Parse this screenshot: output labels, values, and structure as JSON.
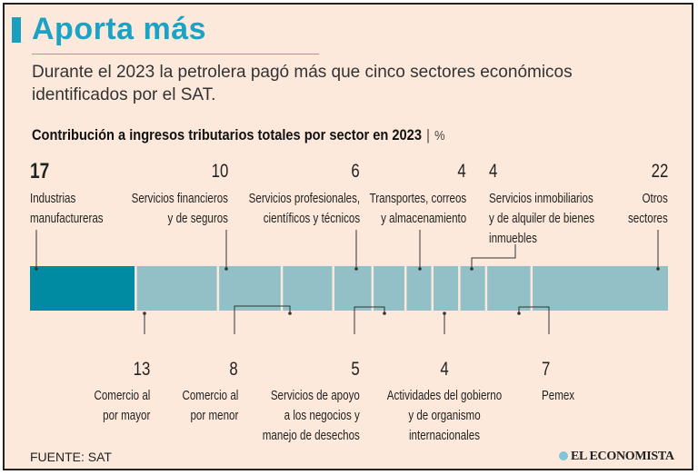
{
  "header": {
    "title": "Aporta más",
    "subtitle": "Durante el 2023 la petrolera pagó más que cinco sectores económicos identificados por el SAT."
  },
  "footer": {
    "source": "FUENTE: SAT",
    "logo": "EL ECONOMISTA"
  },
  "colors": {
    "highlight": "#008ba3",
    "other": "#93bfc6",
    "title": "#1aa3c4",
    "background": "#fce9db"
  },
  "chart_data": {
    "type": "bar",
    "orientation": "horizontal-stacked",
    "title": "Contribución a ingresos tributarios totales por sector en 2023",
    "unit": "%",
    "categories": [
      "Industrias manufactureras",
      "Comercio al por mayor",
      "Servicios financieros y de seguros",
      "Comercio al por menor",
      "Servicios profesionales, científicos y técnicos",
      "Servicios de apoyo a los negocios y manejo de desechos",
      "Transportes, correos y almacenamiento",
      "Actividades del gobierno y de organismo internacionales",
      "Servicios inmobiliarios y de alquiler de bienes inmuebles",
      "Pemex",
      "Otros sectores"
    ],
    "values": [
      17,
      13,
      10,
      8,
      6,
      5,
      4,
      4,
      4,
      7,
      22
    ],
    "values_text": [
      "17",
      "13",
      "10",
      "8",
      "6",
      "5",
      "4",
      "4",
      "4",
      "7",
      "22"
    ],
    "label_lines": [
      [
        "Industrias",
        "manufactureras"
      ],
      [
        "Comercio al",
        "por mayor"
      ],
      [
        "Servicios financieros",
        "y de seguros"
      ],
      [
        "Comercio al",
        "por menor"
      ],
      [
        "Servicios profesionales,",
        "científicos y técnicos"
      ],
      [
        "Servicios de apoyo",
        "a los negocios y",
        "manejo de desechos"
      ],
      [
        "Transportes, correos",
        "y almacenamiento"
      ],
      [
        "Actividades del gobierno",
        "y de organismo",
        "internacionales"
      ],
      [
        "Servicios inmobiliarios",
        "y de alquiler de bienes",
        "inmuebles"
      ],
      [
        "Pemex"
      ],
      [
        "Otros",
        "sectores"
      ]
    ],
    "highlighted": "Industrias manufactureras"
  }
}
